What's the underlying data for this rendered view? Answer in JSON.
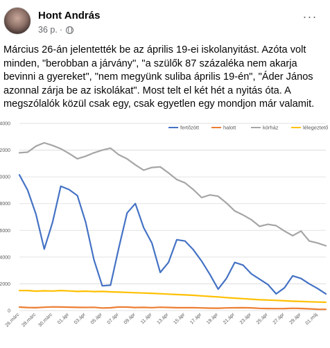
{
  "post": {
    "author": "Hont András",
    "time": "36 p.",
    "separator": "·",
    "more_label": "···",
    "text": "Március 26-án jelentették be az április 19-ei iskolanyitást. Azóta volt minden, \"berobban a járvány\", \"a szülők 87 százaléka nem akarja bevinni a gyereket\", \"nem megyünk suliba április 19-én\", \"Áder János azonnal zárja be az iskolákat\". Most telt el két hét a nyitás óta. A megszólalók közül csak egy, csak egyetlen egy mondjon már valamit."
  },
  "chart_data": {
    "type": "line",
    "y_ticks": [
      "14000",
      "12000",
      "10000",
      "8000",
      "6000",
      "4000",
      "2000",
      "0"
    ],
    "ylim": [
      0,
      14000
    ],
    "x_tick_labels": [
      "26.márc",
      "28.márc",
      "30.márc",
      "01.ápr",
      "03.ápr",
      "05.ápr",
      "07.ápr",
      "09.ápr",
      "11.ápr",
      "13.ápr",
      "15.ápr",
      "17.ápr",
      "19.ápr",
      "21.ápr",
      "23.ápr",
      "25.ápr",
      "27.ápr",
      "29.ápr",
      "01.máj"
    ],
    "legend_position": "top-right",
    "series": [
      {
        "name": "fertőzött",
        "color": "#4472c4",
        "values": [
          10150,
          9000,
          7200,
          4600,
          6600,
          9300,
          9050,
          8600,
          6600,
          3800,
          1850,
          1900,
          4700,
          7300,
          8000,
          6200,
          5050,
          2850,
          3600,
          5300,
          5200,
          4550,
          3700,
          2700,
          1600,
          2400,
          3600,
          3400,
          2750,
          2350,
          1950,
          1250,
          1700,
          2600,
          2400,
          2000,
          1650,
          1250
        ]
      },
      {
        "name": "halott",
        "color": "#ed7d31",
        "values": [
          260,
          230,
          210,
          250,
          275,
          265,
          255,
          240,
          235,
          245,
          190,
          205,
          270,
          260,
          230,
          240,
          220,
          250,
          235,
          215,
          215,
          210,
          195,
          180,
          175,
          195,
          205,
          210,
          200,
          165,
          150,
          145,
          150,
          170,
          155,
          130,
          100,
          95
        ]
      },
      {
        "name": "kórház",
        "color": "#a5a5a5",
        "values": [
          11800,
          11850,
          12300,
          12550,
          12350,
          12100,
          11750,
          11350,
          11550,
          11800,
          12000,
          12150,
          11650,
          11350,
          10900,
          10500,
          10700,
          10750,
          10300,
          9800,
          9550,
          9050,
          8450,
          8650,
          8550,
          8050,
          7450,
          7150,
          6800,
          6300,
          6450,
          6350,
          5950,
          5600,
          5950,
          5200,
          5050,
          4850
        ]
      },
      {
        "name": "lélegeztető",
        "color": "#ffc000",
        "values": [
          1500,
          1500,
          1450,
          1480,
          1460,
          1500,
          1470,
          1430,
          1450,
          1420,
          1430,
          1400,
          1380,
          1360,
          1330,
          1310,
          1290,
          1260,
          1230,
          1200,
          1170,
          1140,
          1100,
          1060,
          1020,
          970,
          930,
          890,
          850,
          810,
          790,
          760,
          730,
          700,
          680,
          660,
          640,
          620
        ]
      }
    ]
  }
}
